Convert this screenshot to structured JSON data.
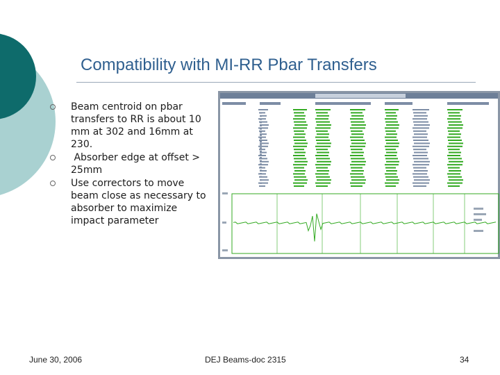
{
  "slide": {
    "title": "Compatibility with MI-RR Pbar Transfers",
    "bullets": [
      "Beam centroid on pbar transfers to RR is about 10 mm at 302 and 16mm at 230.",
      " Absorber edge at offset > 25mm",
      "Use correctors to move beam close as necessary to absorber to maximize impact parameter"
    ],
    "footer": {
      "date": "June 30, 2006",
      "doc": "DEJ Beams-doc 2315",
      "page": "34"
    }
  },
  "colors": {
    "teal_dark": "#0e6b6b",
    "teal_light": "#a9d1d1",
    "title": "#2f5f8f",
    "screen_bg": "#ffffff",
    "screen_green": "#33aa22"
  }
}
